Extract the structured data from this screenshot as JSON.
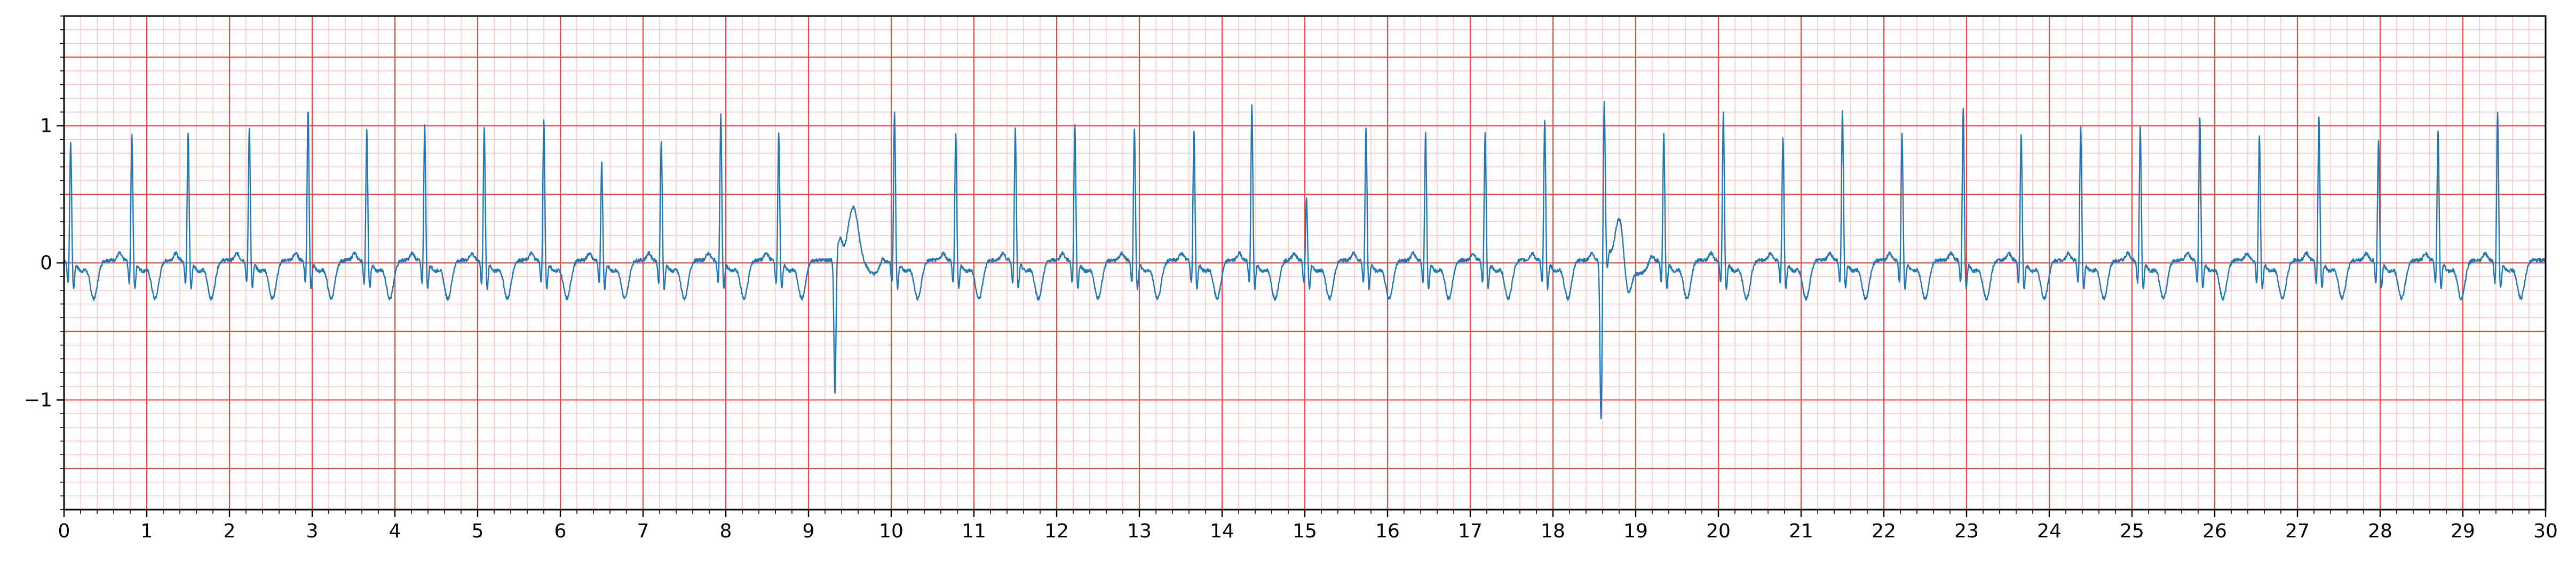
{
  "chart_data": {
    "type": "line",
    "title": "",
    "xlabel": "",
    "ylabel": "",
    "xlim": [
      0,
      30
    ],
    "ylim": [
      -1.8,
      1.8
    ],
    "x_ticks": [
      "0",
      "1",
      "2",
      "3",
      "4",
      "5",
      "6",
      "7",
      "8",
      "9",
      "10",
      "11",
      "12",
      "13",
      "14",
      "15",
      "16",
      "17",
      "18",
      "19",
      "20",
      "21",
      "22",
      "23",
      "24",
      "25",
      "26",
      "27",
      "28",
      "29",
      "30"
    ],
    "y_ticks": [
      {
        "value": 1,
        "label": "1"
      },
      {
        "value": 0,
        "label": "0"
      },
      {
        "value": -1,
        "label": "−1"
      }
    ],
    "grid": {
      "major_x": 1,
      "major_y": 0.5,
      "minor_x": 0.2,
      "minor_y": 0.1
    },
    "colors": {
      "major_grid": "#ee4444",
      "minor_grid": "#ffc2c2",
      "line": "#1f77b4"
    },
    "series": [
      {
        "name": "",
        "baseline": 0.02,
        "beats": [
          {
            "t": 0.08,
            "r": 0.8
          },
          {
            "t": 0.82,
            "r": 0.85
          },
          {
            "t": 1.5,
            "r": 0.86
          },
          {
            "t": 2.24,
            "r": 0.9
          },
          {
            "t": 2.95,
            "r": 1.04
          },
          {
            "t": 3.66,
            "r": 0.88
          },
          {
            "t": 4.36,
            "r": 0.91
          },
          {
            "t": 5.08,
            "r": 0.9
          },
          {
            "t": 5.8,
            "r": 0.95
          },
          {
            "t": 6.5,
            "r": 0.65
          },
          {
            "t": 7.22,
            "r": 0.8
          },
          {
            "t": 7.94,
            "r": 0.99
          },
          {
            "t": 8.64,
            "r": 0.85
          },
          {
            "t": 10.04,
            "r": 1.02
          },
          {
            "t": 10.78,
            "r": 0.85
          },
          {
            "t": 11.5,
            "r": 0.89
          },
          {
            "t": 12.22,
            "r": 0.92
          },
          {
            "t": 12.94,
            "r": 0.9
          },
          {
            "t": 13.66,
            "r": 0.88
          },
          {
            "t": 14.36,
            "r": 1.06
          },
          {
            "t": 15.02,
            "r": 0.38
          },
          {
            "t": 15.74,
            "r": 0.9
          },
          {
            "t": 16.46,
            "r": 0.86
          },
          {
            "t": 17.18,
            "r": 0.86
          },
          {
            "t": 17.9,
            "r": 0.96
          },
          {
            "t": 18.62,
            "r": 0.97
          },
          {
            "t": 19.34,
            "r": 0.86
          },
          {
            "t": 20.06,
            "r": 1.0
          },
          {
            "t": 20.78,
            "r": 0.83
          },
          {
            "t": 21.5,
            "r": 1.03
          },
          {
            "t": 22.22,
            "r": 0.85
          },
          {
            "t": 22.96,
            "r": 1.04
          },
          {
            "t": 23.66,
            "r": 0.86
          },
          {
            "t": 24.38,
            "r": 0.9
          },
          {
            "t": 25.1,
            "r": 0.9
          },
          {
            "t": 25.82,
            "r": 0.96
          },
          {
            "t": 26.54,
            "r": 0.84
          },
          {
            "t": 27.26,
            "r": 0.97
          },
          {
            "t": 27.98,
            "r": 0.8
          },
          {
            "t": 28.7,
            "r": 0.88
          },
          {
            "t": 29.42,
            "r": 1.01
          }
        ],
        "ectopic_beats": [
          {
            "t": 9.32,
            "dip": -0.98,
            "peak_t": 9.54,
            "peak": 0.44
          },
          {
            "t": 18.58,
            "dip": -1.04,
            "peak_t": 18.8,
            "peak": 0.42
          }
        ]
      }
    ]
  }
}
